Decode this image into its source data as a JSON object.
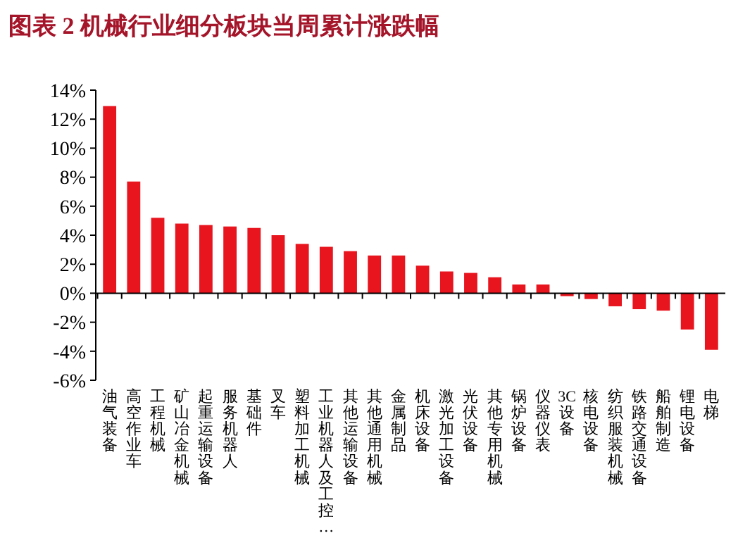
{
  "chart_data": {
    "type": "bar",
    "title": "图表 2   机械行业细分板块当周累计涨跌幅",
    "categories": [
      "油气装备",
      "高空作业车",
      "工程机械",
      "矿山冶金机械",
      "起重运输设备",
      "服务机器人",
      "基础件",
      "叉车",
      "塑料加工机械",
      "工业机器人及工控…",
      "其他运输设备",
      "其他通用机械",
      "金属制品",
      "机床设备",
      "激光加工设备",
      "光伏设备",
      "其他专用机械",
      "锅炉设备",
      "仪器仪表",
      "3C设备",
      "核电设备",
      "纺织服装机械",
      "铁路交通设备",
      "船舶制造",
      "锂电设备",
      "电梯"
    ],
    "values": [
      12.9,
      7.7,
      5.2,
      4.8,
      4.7,
      4.6,
      4.5,
      4.0,
      3.4,
      3.2,
      2.9,
      2.6,
      2.6,
      1.9,
      1.5,
      1.4,
      1.1,
      0.6,
      0.6,
      -0.2,
      -0.4,
      -0.9,
      -1.1,
      -1.2,
      -2.5,
      -3.9
    ],
    "color": "#e8141e",
    "ylim": [
      -6,
      14
    ],
    "yticks": [
      {
        "value": -6,
        "label": "-6%"
      },
      {
        "value": -4,
        "label": "-4%"
      },
      {
        "value": -2,
        "label": "-2%"
      },
      {
        "value": 0,
        "label": "0%"
      },
      {
        "value": 2,
        "label": "2%"
      },
      {
        "value": 4,
        "label": "4%"
      },
      {
        "value": 6,
        "label": "6%"
      },
      {
        "value": 8,
        "label": "8%"
      },
      {
        "value": 10,
        "label": "10%"
      },
      {
        "value": 12,
        "label": "12%"
      },
      {
        "value": 14,
        "label": "14%"
      }
    ]
  }
}
